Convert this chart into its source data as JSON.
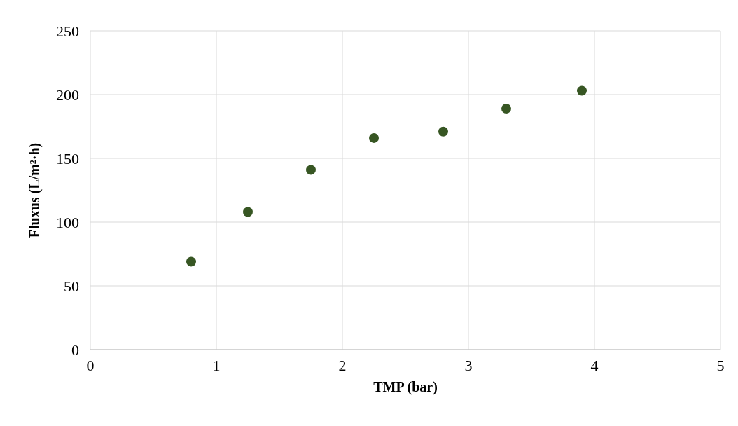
{
  "chart_data": {
    "type": "scatter",
    "xlabel": "TMP (bar)",
    "ylabel": "Fluxus (L/m²·h)",
    "x": [
      0.8,
      1.25,
      1.75,
      2.25,
      2.8,
      3.3,
      3.9
    ],
    "series": [
      {
        "color": "#375623",
        "values": [
          69,
          108,
          141,
          166,
          171,
          189,
          203
        ]
      }
    ],
    "xlim": [
      0,
      5
    ],
    "xticks": [
      0,
      1,
      2,
      3,
      4,
      5
    ],
    "ylim": [
      0,
      250
    ],
    "yticks": [
      0,
      50,
      100,
      150,
      200,
      250
    ],
    "grid": true,
    "marker": "circle",
    "legend": false
  }
}
